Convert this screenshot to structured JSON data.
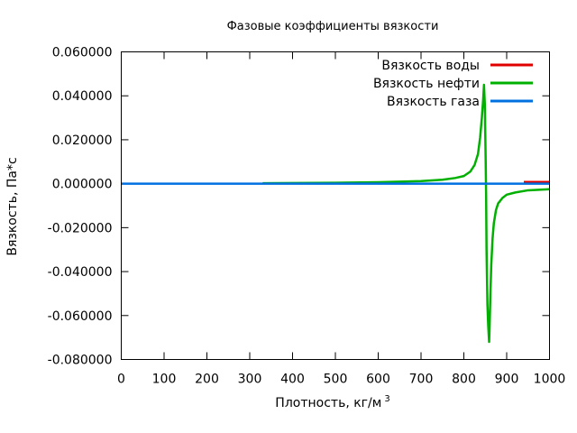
{
  "chart_data": {
    "type": "line",
    "title": "Фазовые коэффициенты вязкости",
    "xlabel": "Плотность, кг/м",
    "xlabel_superscript": "3",
    "ylabel": "Вязкость, Па*с",
    "xlim": [
      0,
      1000
    ],
    "ylim": [
      -0.08,
      0.06
    ],
    "x_ticks": [
      0,
      100,
      200,
      300,
      400,
      500,
      600,
      700,
      800,
      900,
      1000
    ],
    "x_tick_labels": [
      "0",
      "100",
      "200",
      "300",
      "400",
      "500",
      "600",
      "700",
      "800",
      "900",
      "1000"
    ],
    "y_ticks": [
      0.06,
      0.04,
      0.02,
      0.0,
      -0.02,
      -0.04,
      -0.06,
      -0.08
    ],
    "y_tick_labels": [
      "0.060000",
      "0.040000",
      "0.020000",
      "0.000000",
      "-0.020000",
      "-0.040000",
      "-0.060000",
      "-0.080000"
    ],
    "grid": false,
    "legend_position": "top-right",
    "series": [
      {
        "name": "Вязкость воды",
        "color": "#e00000",
        "x": [
          940,
          1000
        ],
        "y": [
          0.0008,
          0.0008
        ]
      },
      {
        "name": "Вязкость нефти",
        "color": "#00b000",
        "x": [
          330,
          500,
          600,
          700,
          750,
          780,
          800,
          815,
          825,
          833,
          838,
          842,
          845,
          847,
          849,
          851,
          852,
          853,
          855,
          857,
          859,
          860,
          862,
          864,
          867,
          870,
          875,
          880,
          890,
          900,
          920,
          950,
          1000
        ],
        "y": [
          0.0002,
          0.0004,
          0.0007,
          0.0012,
          0.0018,
          0.0026,
          0.0035,
          0.0055,
          0.0085,
          0.0135,
          0.021,
          0.03,
          0.038,
          0.045,
          0.036,
          0.01,
          -0.005,
          -0.03,
          -0.055,
          -0.065,
          -0.072,
          -0.066,
          -0.05,
          -0.037,
          -0.025,
          -0.018,
          -0.012,
          -0.009,
          -0.0065,
          -0.005,
          -0.004,
          -0.003,
          -0.0025
        ]
      },
      {
        "name": "Вязкость газа",
        "color": "#0070e0",
        "x": [
          0,
          1000
        ],
        "y": [
          0.0,
          0.0
        ]
      }
    ]
  }
}
